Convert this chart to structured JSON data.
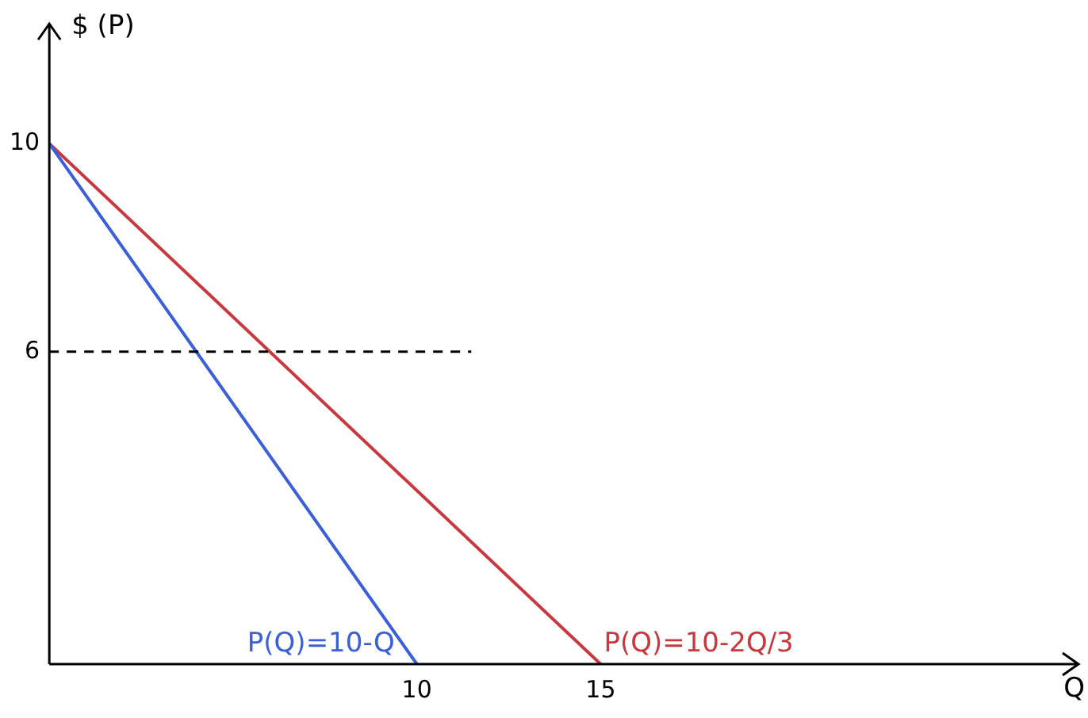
{
  "chart_data": {
    "type": "line",
    "xlabel": "Q",
    "ylabel": "$ (P)",
    "xlim": [
      0,
      28
    ],
    "ylim": [
      0,
      12.3
    ],
    "xticks": [
      10,
      15
    ],
    "yticks": [
      6,
      10
    ],
    "grid": false,
    "legend": false,
    "marker": "none",
    "line_style": "solid",
    "series": [
      {
        "name": "P(Q)=10-Q",
        "color": "#3a5fd9",
        "x": [
          0,
          10
        ],
        "values": [
          10,
          0
        ]
      },
      {
        "name": "P(Q)=10-2Q/3",
        "color": "#c9383f",
        "x": [
          0,
          15
        ],
        "values": [
          10,
          0
        ]
      }
    ],
    "ref_lines": [
      {
        "axis": "y",
        "value": 6,
        "color": "#000000",
        "line_style": "dashed"
      }
    ]
  }
}
